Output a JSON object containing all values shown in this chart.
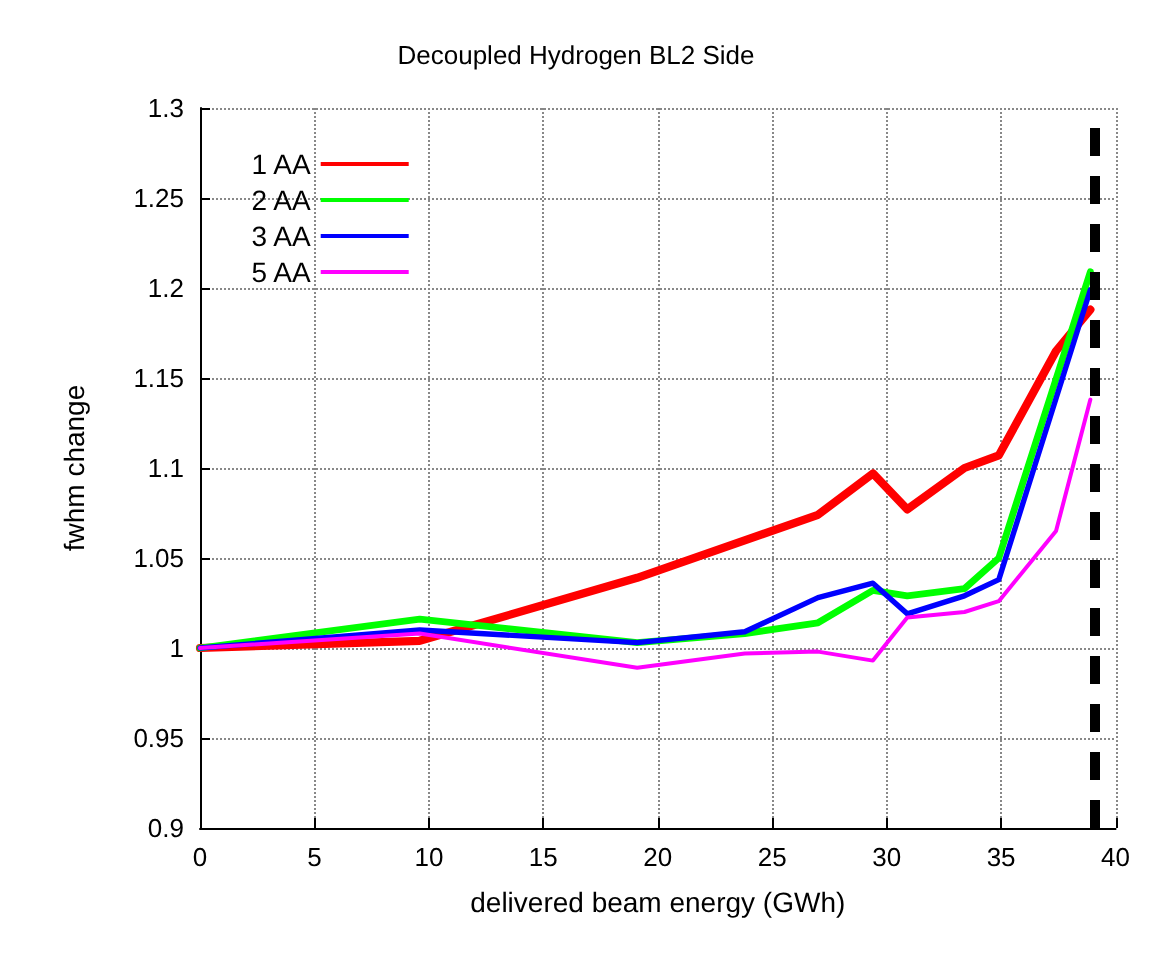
{
  "chart_data": {
    "type": "line",
    "title": "Decoupled Hydrogen BL2 Side",
    "xlabel": "delivered beam energy (GWh)",
    "ylabel": "fwhm change",
    "series": [
      {
        "name": "1 AA",
        "color": "#ff0000",
        "x": [
          0,
          9.6,
          19.1,
          27.0,
          29.4,
          30.9,
          33.4,
          34.9,
          37.4,
          38.9
        ],
        "values": [
          1,
          1.004,
          1.039,
          1.074,
          1.097,
          1.077,
          1.1,
          1.107,
          1.165,
          1.188
        ]
      },
      {
        "name": "2 AA",
        "color": "#00ff00",
        "x": [
          0,
          9.6,
          19.1,
          23.8,
          27.0,
          29.4,
          30.9,
          33.4,
          34.9,
          38.9
        ],
        "values": [
          1,
          1.016,
          1.003,
          1.008,
          1.014,
          1.032,
          1.029,
          1.033,
          1.05,
          1.209
        ]
      },
      {
        "name": "3 AA",
        "color": "#0000ff",
        "x": [
          0,
          9.6,
          19.1,
          23.8,
          27.0,
          29.4,
          30.9,
          33.4,
          34.9,
          38.9
        ],
        "values": [
          1,
          1.01,
          1.003,
          1.009,
          1.028,
          1.036,
          1.019,
          1.029,
          1.038,
          1.199
        ]
      },
      {
        "name": "5 AA",
        "color": "#ff00ff",
        "x": [
          0,
          9.6,
          19.1,
          23.8,
          27.0,
          29.4,
          30.9,
          33.4,
          34.9,
          37.4,
          38.9
        ],
        "values": [
          1,
          1.008,
          0.989,
          0.997,
          0.998,
          0.993,
          1.017,
          1.02,
          1.026,
          1.065,
          1.138
        ]
      }
    ],
    "xlim": [
      0,
      40
    ],
    "xticks": [
      0,
      5,
      10,
      15,
      20,
      25,
      30,
      35,
      40
    ],
    "ylim": [
      0.9,
      1.3
    ],
    "yticks": [
      0.9,
      0.95,
      1,
      1.05,
      1.1,
      1.15,
      1.2,
      1.25,
      1.3
    ],
    "ref_lines": [
      {
        "axis": "x",
        "value": 39.1,
        "color": "#000000",
        "line_style": "dashed"
      }
    ],
    "grid": true,
    "legend": "top left",
    "marker": "none",
    "line_style": "solid"
  }
}
